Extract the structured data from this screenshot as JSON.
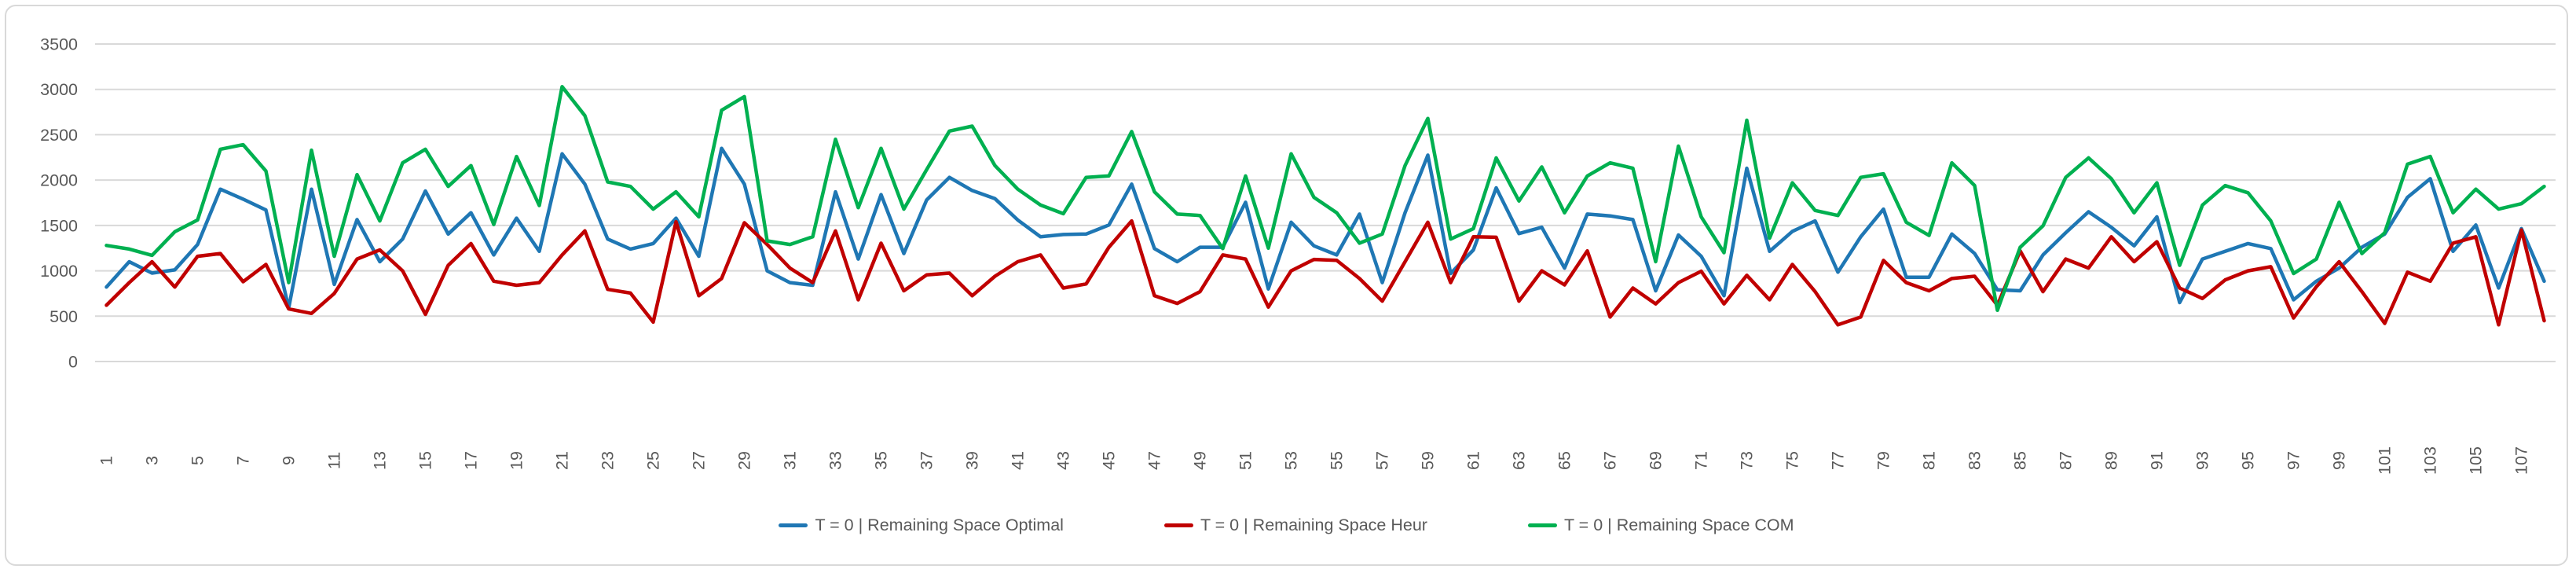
{
  "style": {
    "background": "#FFFFFF",
    "border_color": "#D9D9D9",
    "gridline_color": "#D9D9D9",
    "axis_text_color": "#595959",
    "series_colors": [
      "#1F77B4",
      "#C00000",
      "#00B050"
    ]
  },
  "chart_data": {
    "type": "line",
    "title": "",
    "xlabel": "",
    "ylabel": "",
    "ylim": [
      0,
      3500
    ],
    "yticks": [
      0,
      500,
      1000,
      1500,
      2000,
      2500,
      3000,
      3500
    ],
    "x_tick_labels": [
      "1",
      "3",
      "5",
      "7",
      "9",
      "11",
      "13",
      "15",
      "17",
      "19",
      "21",
      "23",
      "25",
      "27",
      "29",
      "31",
      "33",
      "35",
      "37",
      "39",
      "41",
      "43",
      "45",
      "47",
      "49",
      "51",
      "53",
      "55",
      "57",
      "59",
      "61",
      "63",
      "65",
      "67",
      "69",
      "71",
      "73",
      "75",
      "77",
      "79",
      "81",
      "83",
      "85",
      "87",
      "89",
      "91",
      "93",
      "95",
      "97",
      "99",
      "101",
      "103",
      "105",
      "107"
    ],
    "x_tick_step": 2,
    "point_count": 108,
    "grid": true,
    "legend_position": "bottom",
    "series": [
      {
        "name": "T = 0 | Remaining Space Optimal",
        "color": "#1F77B4",
        "values": [
          820,
          1100,
          975,
          1010,
          1290,
          1900,
          1790,
          1670,
          590,
          1900,
          850,
          1565,
          1100,
          1350,
          1880,
          1405,
          1640,
          1175,
          1580,
          1215,
          2290,
          1955,
          1350,
          1240,
          1300,
          1580,
          1160,
          2350,
          1955,
          1000,
          870,
          840,
          1870,
          1130,
          1840,
          1190,
          1780,
          2030,
          1885,
          1795,
          1560,
          1375,
          1400,
          1405,
          1505,
          1955,
          1245,
          1100,
          1260,
          1260,
          1755,
          800,
          1535,
          1275,
          1175,
          1625,
          870,
          1640,
          2275,
          970,
          1230,
          1915,
          1410,
          1480,
          1030,
          1625,
          1605,
          1565,
          780,
          1395,
          1160,
          725,
          2130,
          1215,
          1435,
          1550,
          985,
          1375,
          1680,
          930,
          930,
          1405,
          1190,
          790,
          780,
          1175,
          1420,
          1650,
          1480,
          1275,
          1595,
          650,
          1130,
          1215,
          1300,
          1245,
          680,
          885,
          1030,
          1260,
          1405,
          1810,
          2015,
          1215,
          1505,
          810,
          1465,
          885
        ]
      },
      {
        "name": "T = 0 | Remaining Space Heur",
        "color": "#C00000",
        "values": [
          620,
          870,
          1100,
          820,
          1160,
          1190,
          880,
          1070,
          580,
          530,
          750,
          1130,
          1230,
          1000,
          520,
          1060,
          1300,
          885,
          840,
          870,
          1175,
          1440,
          795,
          755,
          435,
          1540,
          725,
          915,
          1530,
          1290,
          1030,
          870,
          1440,
          680,
          1305,
          780,
          955,
          975,
          725,
          940,
          1100,
          1175,
          810,
          855,
          1260,
          1550,
          725,
          640,
          770,
          1175,
          1130,
          600,
          1000,
          1125,
          1115,
          915,
          665,
          1100,
          1535,
          870,
          1375,
          1370,
          665,
          1000,
          845,
          1220,
          490,
          810,
          635,
          870,
          995,
          635,
          950,
          680,
          1070,
          770,
          405,
          490,
          1115,
          870,
          780,
          915,
          940,
          620,
          1220,
          770,
          1130,
          1030,
          1375,
          1100,
          1320,
          810,
          695,
          900,
          1000,
          1045,
          480,
          825,
          1100,
          770,
          420,
          985,
          885,
          1305,
          1375,
          405,
          1450,
          450
        ]
      },
      {
        "name": "T = 0 | Remaining Space COM",
        "color": "#00B050",
        "values": [
          1280,
          1240,
          1170,
          1430,
          1560,
          2340,
          2390,
          2100,
          870,
          2330,
          1160,
          2060,
          1550,
          2190,
          2340,
          1930,
          2160,
          1510,
          2260,
          1720,
          3030,
          2710,
          1980,
          1930,
          1680,
          1870,
          1595,
          2770,
          2920,
          1330,
          1290,
          1375,
          2450,
          1695,
          2350,
          1680,
          2115,
          2540,
          2595,
          2160,
          1900,
          1725,
          1630,
          2030,
          2045,
          2535,
          1870,
          1625,
          1610,
          1245,
          2045,
          1250,
          2290,
          1810,
          1640,
          1305,
          1405,
          2160,
          2680,
          1350,
          1465,
          2245,
          1770,
          2145,
          1640,
          2045,
          2190,
          2130,
          1100,
          2375,
          1595,
          1200,
          2660,
          1360,
          1970,
          1665,
          1610,
          2030,
          2070,
          1535,
          1390,
          2190,
          1940,
          565,
          1260,
          1495,
          2030,
          2245,
          2015,
          1640,
          1970,
          1060,
          1725,
          1940,
          1860,
          1550,
          970,
          1130,
          1755,
          1190,
          1420,
          2175,
          2260,
          1640,
          1900,
          1680,
          1740,
          1930
        ]
      }
    ]
  }
}
